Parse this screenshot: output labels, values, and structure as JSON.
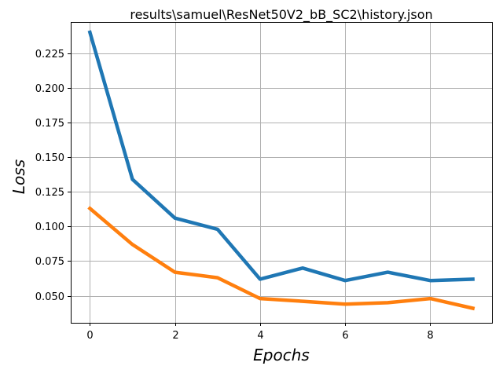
{
  "chart_data": {
    "type": "line",
    "title": "results\\samuel\\ResNet50V2_bB_SC2\\history.json",
    "xlabel": "Epochs",
    "ylabel": "Loss",
    "grid": true,
    "xlim": [
      -0.45,
      9.45
    ],
    "ylim": [
      0.0305,
      0.2475
    ],
    "x_ticks": [
      0,
      2,
      4,
      6,
      8
    ],
    "y_ticks": [
      0.05,
      0.075,
      0.1,
      0.125,
      0.15,
      0.175,
      0.2,
      0.225
    ],
    "x_tick_labels": [
      "0",
      "2",
      "4",
      "6",
      "8"
    ],
    "y_tick_labels": [
      "0.050",
      "0.075",
      "0.100",
      "0.125",
      "0.150",
      "0.175",
      "0.200",
      "0.225"
    ],
    "x": [
      0,
      1,
      2,
      3,
      4,
      5,
      6,
      7,
      8,
      9
    ],
    "series": [
      {
        "color": "#1f77b4",
        "values": [
          0.24,
          0.134,
          0.106,
          0.098,
          0.062,
          0.07,
          0.061,
          0.067,
          0.061,
          0.062
        ]
      },
      {
        "color": "#ff7f0e",
        "values": [
          0.113,
          0.087,
          0.067,
          0.063,
          0.048,
          0.046,
          0.044,
          0.045,
          0.048,
          0.041
        ]
      }
    ]
  }
}
